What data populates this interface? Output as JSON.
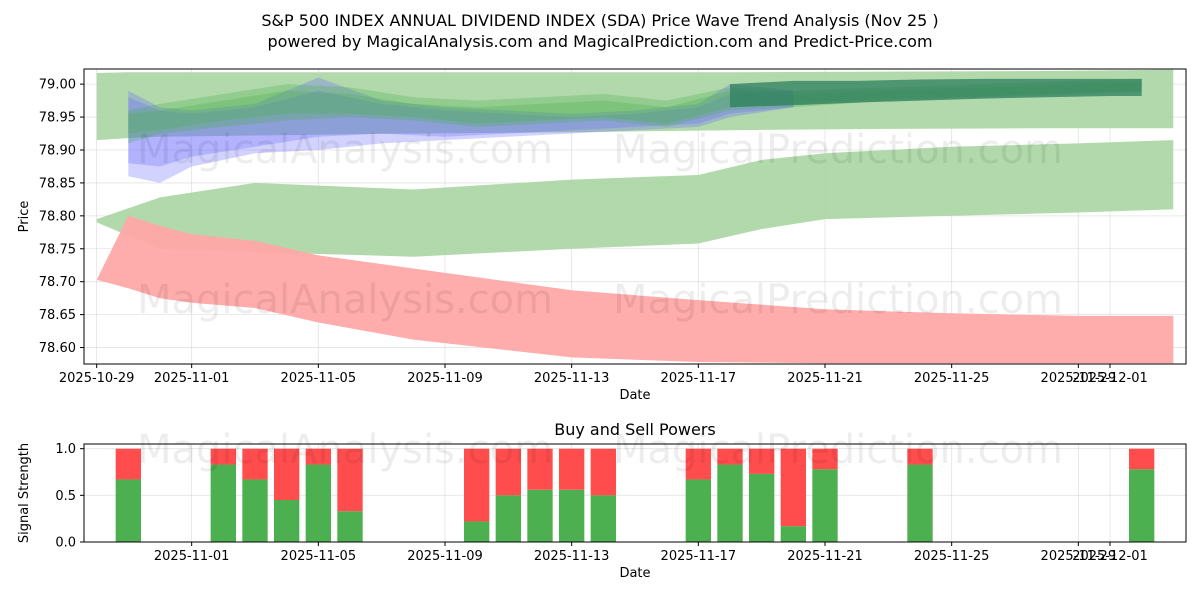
{
  "title": "S&P 500 INDEX ANNUAL DIVIDEND INDEX (SDA) Price Wave Trend Analysis (Nov 25 )",
  "subtitle": "powered by MagicalAnalysis.com and MagicalPrediction.com and Predict-Price.com",
  "watermarks": [
    "MagicalAnalysis.com",
    "MagicalPrediction.com"
  ],
  "colors": {
    "green": "#4caf50",
    "red": "#ff4d4d",
    "blue": "#6b6bff",
    "greenBand": "#a8d5a2",
    "redBand": "#ffa8a8"
  },
  "chart_data": [
    {
      "type": "area",
      "name": "price-wave-chart",
      "xlabel": "Date",
      "ylabel": "Price",
      "xlim": [
        -0.4,
        34.4
      ],
      "ylim": [
        78.575,
        79.023
      ],
      "grid": true,
      "x_ticks": [
        {
          "pos": 0,
          "label": "2025-10-29"
        },
        {
          "pos": 3,
          "label": "2025-11-01"
        },
        {
          "pos": 7,
          "label": "2025-11-05"
        },
        {
          "pos": 11,
          "label": "2025-11-09"
        },
        {
          "pos": 15,
          "label": "2025-11-13"
        },
        {
          "pos": 19,
          "label": "2025-11-17"
        },
        {
          "pos": 23,
          "label": "2025-11-21"
        },
        {
          "pos": 27,
          "label": "2025-11-25"
        },
        {
          "pos": 31,
          "label": "2025-11-29"
        },
        {
          "pos": 32,
          "label": "2025-12-01"
        }
      ],
      "y_ticks": [
        78.6,
        78.65,
        78.7,
        78.75,
        78.8,
        78.85,
        78.9,
        78.95,
        79.0
      ],
      "y_tick_labels": [
        "78.60",
        "78.65",
        "78.70",
        "78.75",
        "78.80",
        "78.85",
        "78.90",
        "78.95",
        "79.00"
      ],
      "bands": [
        {
          "name": "upper-green-band",
          "color": "green",
          "x": [
            0,
            1,
            2,
            5,
            10,
            15,
            20,
            25,
            30,
            34
          ],
          "upper": [
            79.017,
            79.018,
            79.018,
            79.018,
            79.018,
            79.018,
            79.018,
            79.019,
            79.02,
            79.022
          ],
          "lower": [
            78.915,
            78.918,
            78.92,
            78.922,
            78.925,
            78.927,
            78.93,
            78.932,
            78.933,
            78.933
          ]
        },
        {
          "name": "middle-green-band",
          "color": "green",
          "x": [
            0,
            2,
            5,
            10,
            15,
            19,
            21,
            23,
            27,
            31,
            34
          ],
          "upper": [
            78.795,
            78.828,
            78.85,
            78.84,
            78.855,
            78.862,
            78.885,
            78.895,
            78.905,
            78.91,
            78.915
          ],
          "lower": [
            78.79,
            78.75,
            78.745,
            78.738,
            78.75,
            78.758,
            78.78,
            78.795,
            78.8,
            78.805,
            78.81
          ]
        },
        {
          "name": "red-band",
          "color": "red",
          "x": [
            0,
            1,
            2,
            3,
            5,
            7,
            10,
            15,
            19,
            23,
            27,
            31,
            34
          ],
          "upper": [
            78.703,
            78.8,
            78.785,
            78.772,
            78.762,
            78.74,
            78.72,
            78.687,
            78.672,
            78.658,
            78.652,
            78.648,
            78.648
          ],
          "lower": [
            78.703,
            78.69,
            78.675,
            78.668,
            78.66,
            78.638,
            78.612,
            78.585,
            78.578,
            78.576,
            78.576,
            78.576,
            78.576
          ]
        }
      ],
      "waves": [
        {
          "name": "blue-wave-1",
          "color": "blue",
          "x": [
            1,
            2,
            3,
            5,
            7,
            9,
            11,
            13,
            15,
            17,
            19,
            20,
            22
          ],
          "upper": [
            78.98,
            78.96,
            78.955,
            78.965,
            78.99,
            78.97,
            78.96,
            78.955,
            78.95,
            78.955,
            78.965,
            78.985,
            78.99
          ],
          "lower": [
            78.86,
            78.85,
            78.875,
            78.895,
            78.9,
            78.91,
            78.915,
            78.92,
            78.925,
            78.93,
            78.935,
            78.95,
            78.965
          ]
        },
        {
          "name": "blue-wave-2",
          "color": "blue",
          "x": [
            1,
            2,
            3,
            5,
            7,
            9,
            11,
            13,
            15,
            17,
            19,
            20,
            22
          ],
          "upper": [
            78.99,
            78.965,
            78.96,
            78.97,
            79.01,
            78.975,
            78.965,
            78.96,
            78.955,
            78.96,
            78.97,
            79.0,
            78.99
          ],
          "lower": [
            78.88,
            78.875,
            78.89,
            78.905,
            78.92,
            78.925,
            78.92,
            78.925,
            78.93,
            78.935,
            78.94,
            78.955,
            78.965
          ]
        },
        {
          "name": "green-wave-1",
          "color": "green",
          "x": [
            1,
            2,
            4,
            6,
            8,
            10,
            12,
            14,
            16,
            18,
            20,
            22,
            25,
            28,
            31,
            33
          ],
          "upper": [
            78.96,
            78.97,
            78.985,
            79.0,
            78.995,
            78.98,
            78.975,
            78.98,
            78.985,
            78.975,
            78.995,
            78.99,
            78.995,
            79.0,
            79.005,
            79.008
          ],
          "lower": [
            78.91,
            78.925,
            78.935,
            78.945,
            78.95,
            78.945,
            78.935,
            78.94,
            78.945,
            78.935,
            78.96,
            78.965,
            78.975,
            78.98,
            78.985,
            78.988
          ]
        },
        {
          "name": "green-wave-2",
          "color": "green",
          "x": [
            1,
            2,
            4,
            6,
            8,
            10,
            12,
            14,
            16,
            18,
            20,
            22,
            25,
            28,
            31,
            33
          ],
          "upper": [
            78.955,
            78.96,
            78.975,
            78.99,
            78.985,
            78.97,
            78.965,
            78.97,
            78.975,
            78.965,
            78.99,
            78.985,
            78.99,
            78.995,
            79.0,
            79.003
          ],
          "lower": [
            78.925,
            78.93,
            78.945,
            78.955,
            78.955,
            78.95,
            78.94,
            78.945,
            78.95,
            78.94,
            78.965,
            78.97,
            78.978,
            78.982,
            78.987,
            78.99
          ]
        },
        {
          "name": "teal-wave-final",
          "color": "teal",
          "x": [
            20,
            22,
            24,
            26,
            28,
            30,
            32,
            33
          ],
          "upper": [
            79.0,
            79.005,
            79.005,
            79.007,
            79.008,
            79.008,
            79.008,
            79.008
          ],
          "lower": [
            78.965,
            78.968,
            78.972,
            78.975,
            78.978,
            78.98,
            78.982,
            78.982
          ]
        }
      ]
    },
    {
      "type": "bar",
      "name": "buy-sell-powers-chart",
      "title": "Buy and Sell Powers",
      "xlabel": "Date",
      "ylabel": "Signal Strength",
      "xlim": [
        -0.4,
        34.4
      ],
      "ylim": [
        0,
        1.05
      ],
      "grid": true,
      "x_ticks": [
        {
          "pos": 3,
          "label": "2025-11-01"
        },
        {
          "pos": 7,
          "label": "2025-11-05"
        },
        {
          "pos": 11,
          "label": "2025-11-09"
        },
        {
          "pos": 15,
          "label": "2025-11-13"
        },
        {
          "pos": 19,
          "label": "2025-11-17"
        },
        {
          "pos": 23,
          "label": "2025-11-21"
        },
        {
          "pos": 27,
          "label": "2025-11-25"
        },
        {
          "pos": 31,
          "label": "2025-11-29"
        },
        {
          "pos": 32,
          "label": "2025-12-01"
        }
      ],
      "y_ticks": [
        0,
        0.5,
        1.0
      ],
      "y_tick_labels": [
        "0.0",
        "0.5",
        "1.0"
      ],
      "series": [
        {
          "name": "Buy",
          "color": "green"
        },
        {
          "name": "Sell",
          "color": "red"
        }
      ],
      "x": [
        1,
        4,
        5,
        6,
        7,
        8,
        12,
        13,
        14,
        15,
        16,
        19,
        20,
        21,
        22,
        23,
        26,
        33
      ],
      "buy": [
        0.67,
        0.83,
        0.67,
        0.45,
        0.83,
        0.33,
        0.22,
        0.5,
        0.56,
        0.56,
        0.5,
        0.67,
        0.83,
        0.73,
        0.17,
        0.78,
        0.83,
        0.78
      ],
      "sell": [
        0.33,
        0.17,
        0.33,
        0.55,
        0.17,
        0.67,
        0.78,
        0.5,
        0.44,
        0.44,
        0.5,
        0.33,
        0.17,
        0.27,
        0.83,
        0.22,
        0.17,
        0.22
      ]
    }
  ]
}
